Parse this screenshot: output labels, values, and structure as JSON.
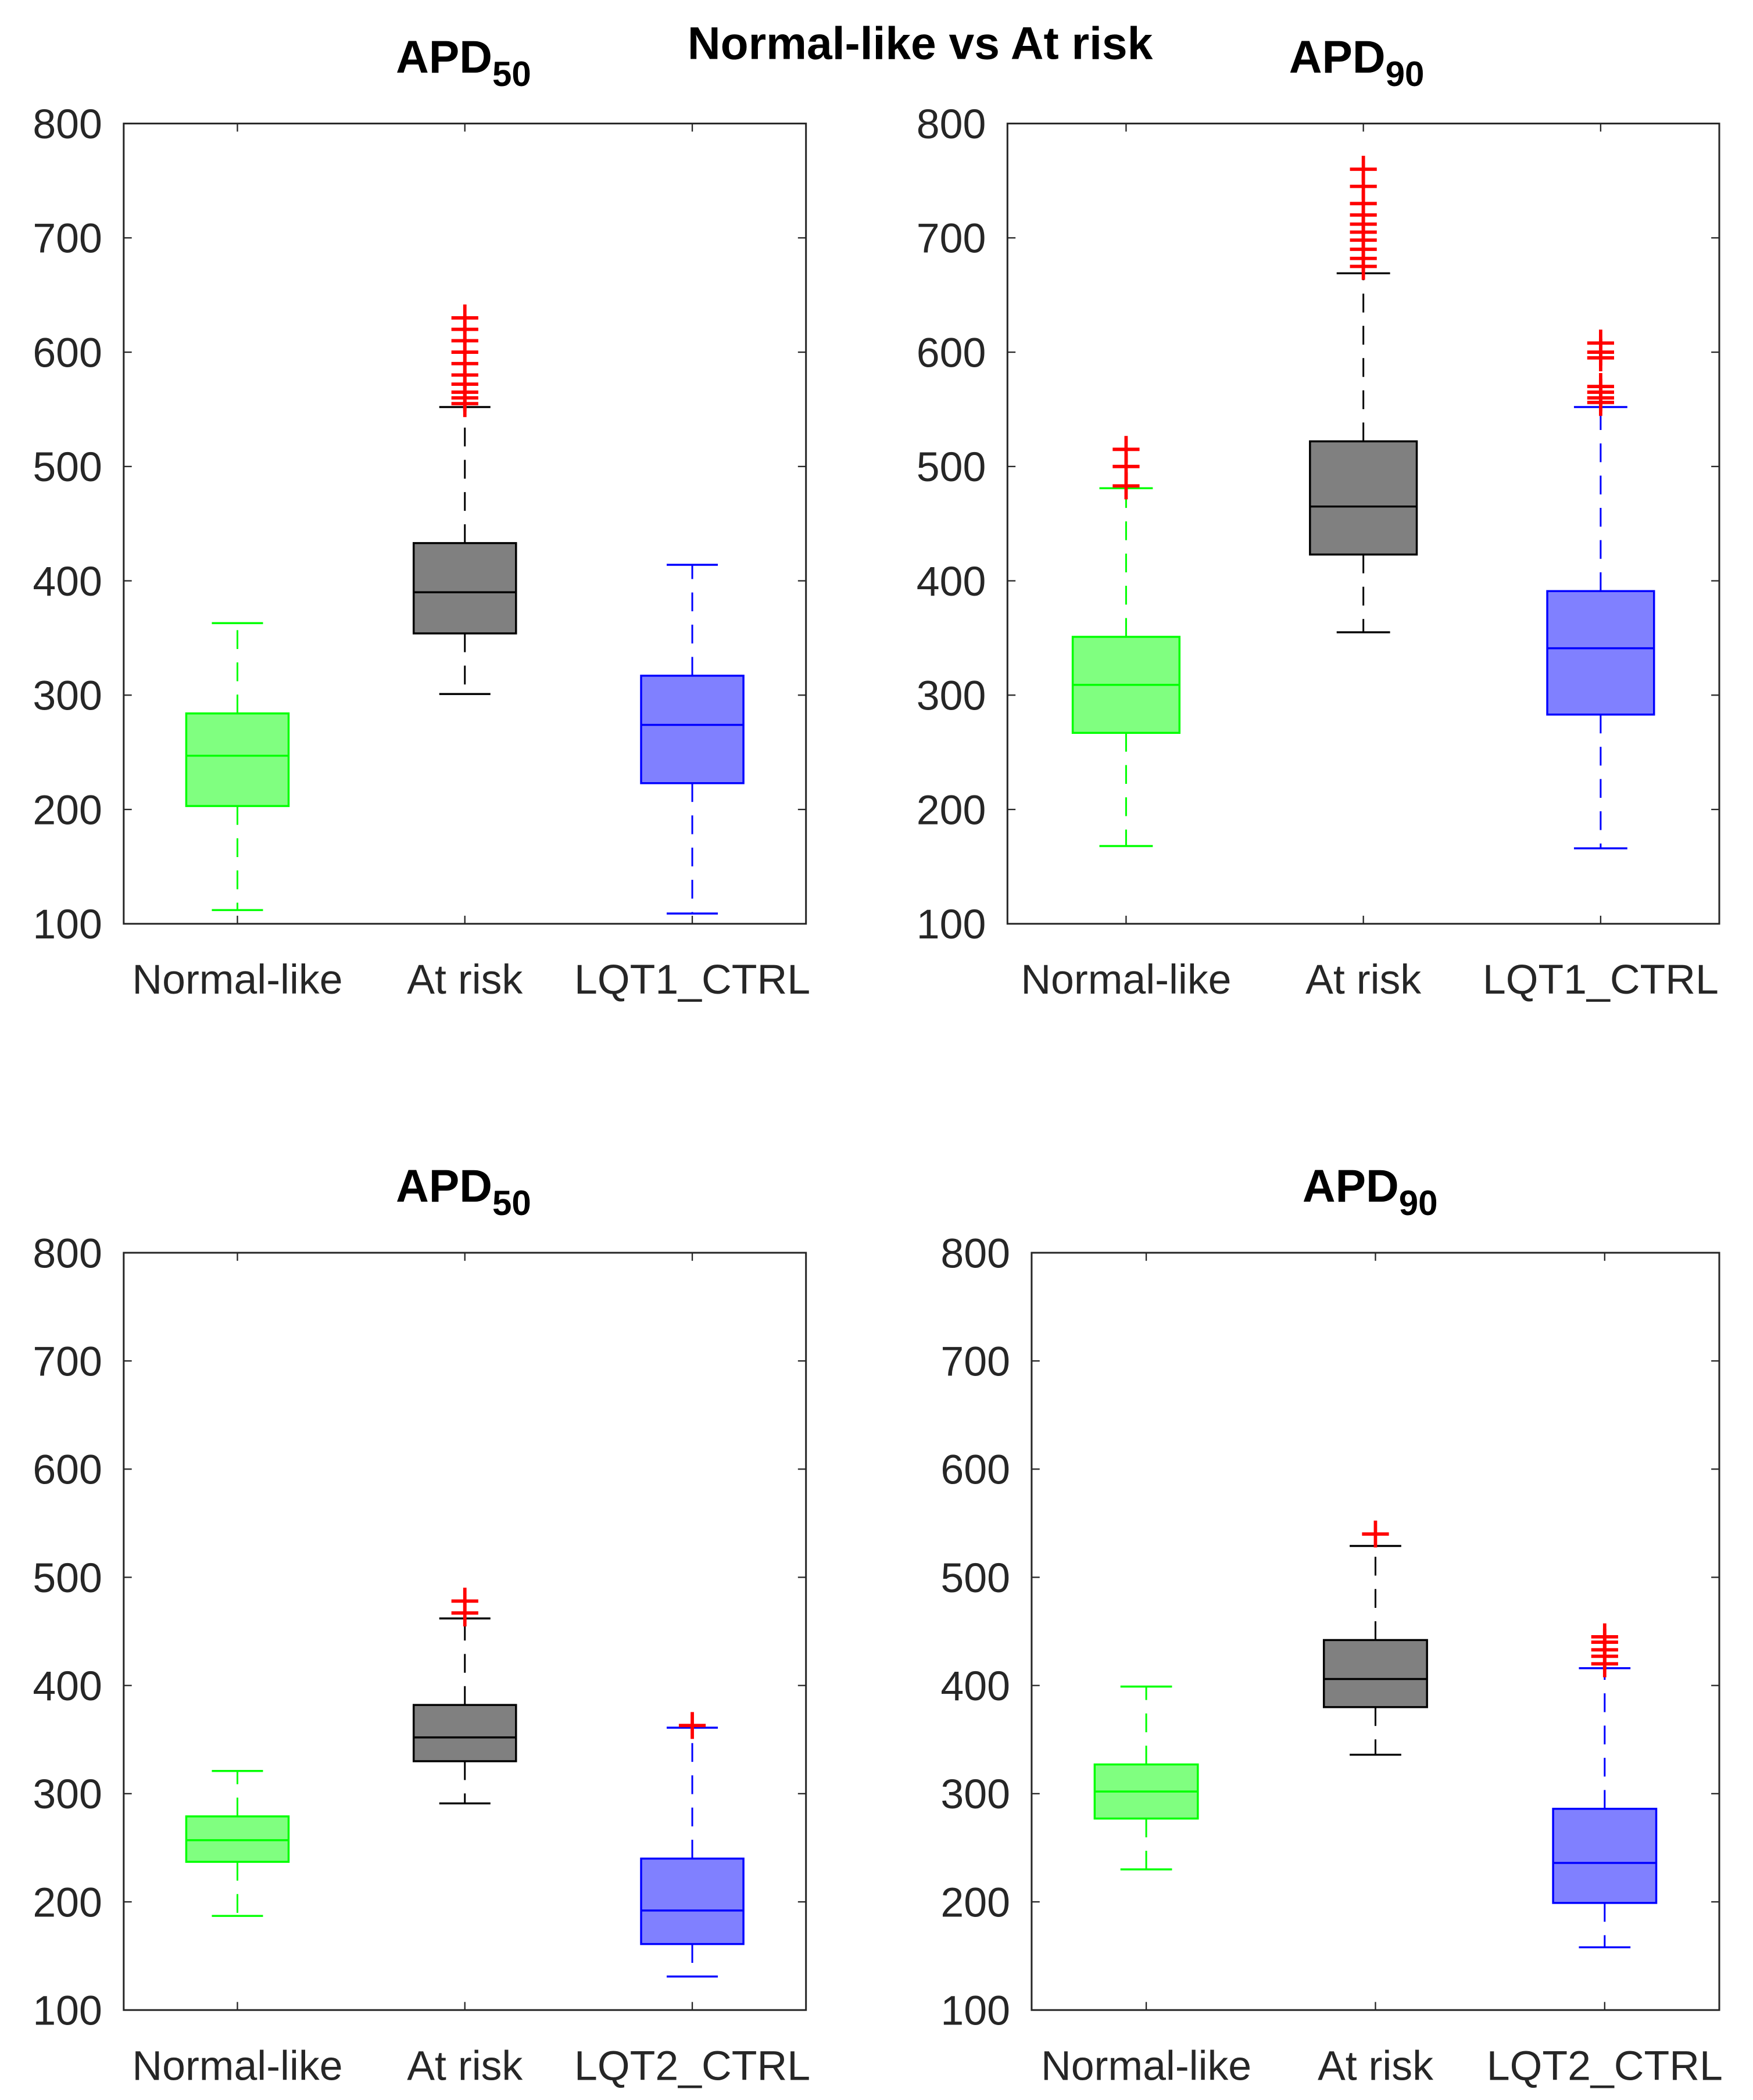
{
  "figure_title": "Normal-like vs At risk",
  "colors": {
    "Normal-like": {
      "edge": "#00ff00",
      "fill": "#80ff80"
    },
    "At risk": {
      "edge": "#000000",
      "fill": "#808080"
    },
    "CTRL": {
      "edge": "#0000ff",
      "fill": "#8080ff"
    },
    "outlier": "#ff0000"
  },
  "chart_data": [
    {
      "type": "box",
      "title": "APD",
      "title_sub": "50",
      "ylim": [
        100,
        800
      ],
      "yticks": [
        "100",
        "200",
        "300",
        "400",
        "500",
        "600",
        "700",
        "800"
      ],
      "categories": [
        "Normal-like",
        "At risk",
        "LQT1_CTRL"
      ],
      "boxes": [
        {
          "min": 112,
          "q1": 203,
          "median": 247,
          "q3": 284,
          "max": 363,
          "outliers": []
        },
        {
          "min": 301,
          "q1": 354,
          "median": 390,
          "q3": 433,
          "max": 552,
          "outliers": [
            555,
            560,
            565,
            572,
            580,
            590,
            600,
            610,
            620,
            630
          ]
        },
        {
          "min": 109,
          "q1": 223,
          "median": 274,
          "q3": 317,
          "max": 414,
          "outliers": []
        }
      ]
    },
    {
      "type": "box",
      "title": "APD",
      "title_sub": "90",
      "ylim": [
        100,
        800
      ],
      "yticks": [
        "100",
        "200",
        "300",
        "400",
        "500",
        "600",
        "700",
        "800"
      ],
      "categories": [
        "Normal-like",
        "At risk",
        "LQT1_CTRL"
      ],
      "boxes": [
        {
          "min": 168,
          "q1": 267,
          "median": 309,
          "q3": 351,
          "max": 481,
          "outliers": [
            483,
            500,
            515
          ]
        },
        {
          "min": 355,
          "q1": 423,
          "median": 465,
          "q3": 522,
          "max": 669,
          "outliers": [
            675,
            682,
            690,
            698,
            705,
            712,
            720,
            730,
            745,
            760
          ]
        },
        {
          "min": 166,
          "q1": 283,
          "median": 341,
          "q3": 391,
          "max": 552,
          "outliers": [
            556,
            560,
            565,
            570,
            595,
            600,
            608
          ]
        }
      ]
    },
    {
      "type": "box",
      "title": "APD",
      "title_sub": "50",
      "ylim": [
        100,
        800
      ],
      "yticks": [
        "100",
        "200",
        "300",
        "400",
        "500",
        "600",
        "700",
        "800"
      ],
      "categories": [
        "Normal-like",
        "At risk",
        "LQT2_CTRL"
      ],
      "boxes": [
        {
          "min": 187,
          "q1": 237,
          "median": 257,
          "q3": 279,
          "max": 321,
          "outliers": []
        },
        {
          "min": 291,
          "q1": 330,
          "median": 352,
          "q3": 382,
          "max": 462,
          "outliers": [
            467,
            478
          ]
        },
        {
          "min": 131,
          "q1": 161,
          "median": 192,
          "q3": 240,
          "max": 361,
          "outliers": [
            363
          ]
        }
      ]
    },
    {
      "type": "box",
      "title": "APD",
      "title_sub": "90",
      "ylim": [
        100,
        800
      ],
      "yticks": [
        "100",
        "200",
        "300",
        "400",
        "500",
        "600",
        "700",
        "800"
      ],
      "categories": [
        "Normal-like",
        "At risk",
        "LQT2_CTRL"
      ],
      "boxes": [
        {
          "min": 230,
          "q1": 277,
          "median": 302,
          "q3": 327,
          "max": 399,
          "outliers": []
        },
        {
          "min": 336,
          "q1": 380,
          "median": 406,
          "q3": 442,
          "max": 529,
          "outliers": [
            540
          ]
        },
        {
          "min": 158,
          "q1": 199,
          "median": 236,
          "q3": 286,
          "max": 416,
          "outliers": [
            420,
            427,
            433,
            440,
            445
          ]
        }
      ]
    }
  ]
}
